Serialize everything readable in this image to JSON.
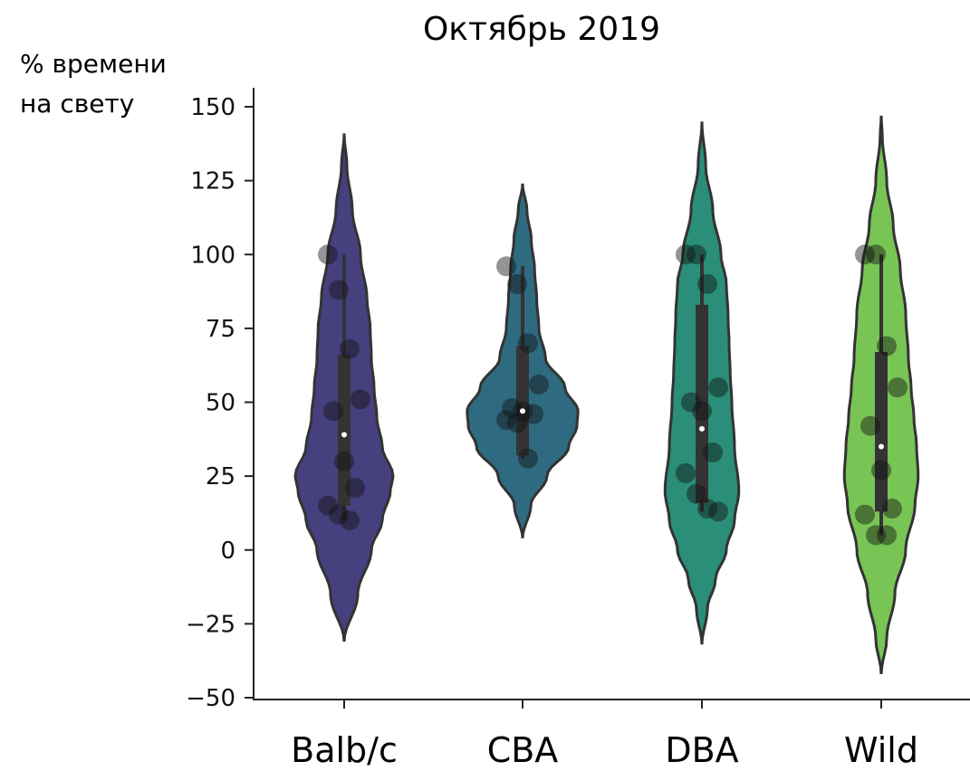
{
  "chart_data": {
    "type": "violin",
    "title": "Октябрь 2019",
    "ylabel_lines": [
      "% времени",
      "на свету"
    ],
    "xlabel": "",
    "ylim": [
      -50,
      150
    ],
    "yticks": [
      -50,
      -25,
      0,
      25,
      50,
      75,
      100,
      125,
      150
    ],
    "ytick_labels": [
      "−50",
      "−25",
      "0",
      "25",
      "50",
      "75",
      "100",
      "125",
      "150"
    ],
    "categories": [
      "Balb/c",
      "CBA",
      "DBA",
      "Wild"
    ],
    "grid": false,
    "series": [
      {
        "category": "Balb/c",
        "color": "#46407f",
        "kde_range": [
          -31,
          141
        ],
        "profile": [
          [
            -31,
            0
          ],
          [
            -15,
            0.25
          ],
          [
            0,
            0.5
          ],
          [
            10,
            0.7
          ],
          [
            20,
            0.85
          ],
          [
            25,
            0.9
          ],
          [
            35,
            0.7
          ],
          [
            45,
            0.6
          ],
          [
            55,
            0.55
          ],
          [
            65,
            0.5
          ],
          [
            75,
            0.48
          ],
          [
            85,
            0.42
          ],
          [
            100,
            0.3
          ],
          [
            115,
            0.15
          ],
          [
            130,
            0.05
          ],
          [
            141,
            0
          ]
        ],
        "box": {
          "whisker_low": 10,
          "q1": 15,
          "median": 39,
          "q3": 66,
          "whisker_high": 100
        },
        "points": [
          100,
          88,
          68,
          51,
          47,
          30,
          21,
          15,
          12,
          10
        ]
      },
      {
        "category": "CBA",
        "color": "#2f6b80",
        "kde_range": [
          4,
          124
        ],
        "profile": [
          [
            4,
            0
          ],
          [
            15,
            0.15
          ],
          [
            25,
            0.45
          ],
          [
            35,
            0.85
          ],
          [
            42,
            1.0
          ],
          [
            47,
            1.02
          ],
          [
            55,
            0.78
          ],
          [
            65,
            0.42
          ],
          [
            75,
            0.3
          ],
          [
            85,
            0.26
          ],
          [
            95,
            0.22
          ],
          [
            105,
            0.16
          ],
          [
            115,
            0.08
          ],
          [
            124,
            0
          ]
        ],
        "box": {
          "whisker_low": 31,
          "q1": 32,
          "median": 47,
          "q3": 69,
          "whisker_high": 96
        },
        "points": [
          96,
          90,
          70,
          56,
          48,
          47,
          46,
          44,
          43,
          31
        ]
      },
      {
        "category": "DBA",
        "color": "#2a8e78",
        "kde_range": [
          -32,
          145
        ],
        "profile": [
          [
            -32,
            0
          ],
          [
            -20,
            0.1
          ],
          [
            -10,
            0.25
          ],
          [
            0,
            0.45
          ],
          [
            10,
            0.6
          ],
          [
            20,
            0.68
          ],
          [
            35,
            0.6
          ],
          [
            50,
            0.55
          ],
          [
            60,
            0.52
          ],
          [
            70,
            0.5
          ],
          [
            80,
            0.48
          ],
          [
            90,
            0.45
          ],
          [
            100,
            0.35
          ],
          [
            115,
            0.2
          ],
          [
            130,
            0.07
          ],
          [
            145,
            0
          ]
        ],
        "box": {
          "whisker_low": 13,
          "q1": 16,
          "median": 41,
          "q3": 83,
          "whisker_high": 100
        },
        "points": [
          100,
          100,
          90,
          55,
          50,
          47,
          33,
          26,
          19,
          14,
          13
        ]
      },
      {
        "category": "Wild",
        "color": "#78c455",
        "kde_range": [
          -42,
          147
        ],
        "profile": [
          [
            -42,
            0
          ],
          [
            -30,
            0.1
          ],
          [
            -15,
            0.25
          ],
          [
            0,
            0.45
          ],
          [
            15,
            0.62
          ],
          [
            25,
            0.68
          ],
          [
            35,
            0.65
          ],
          [
            45,
            0.6
          ],
          [
            55,
            0.55
          ],
          [
            65,
            0.5
          ],
          [
            80,
            0.45
          ],
          [
            95,
            0.35
          ],
          [
            110,
            0.22
          ],
          [
            125,
            0.1
          ],
          [
            140,
            0.02
          ],
          [
            147,
            0
          ]
        ],
        "box": {
          "whisker_low": 5,
          "q1": 13,
          "median": 35,
          "q3": 67,
          "whisker_high": 100
        },
        "points": [
          100,
          100,
          69,
          55,
          42,
          27,
          14,
          12,
          5,
          5
        ]
      }
    ]
  }
}
